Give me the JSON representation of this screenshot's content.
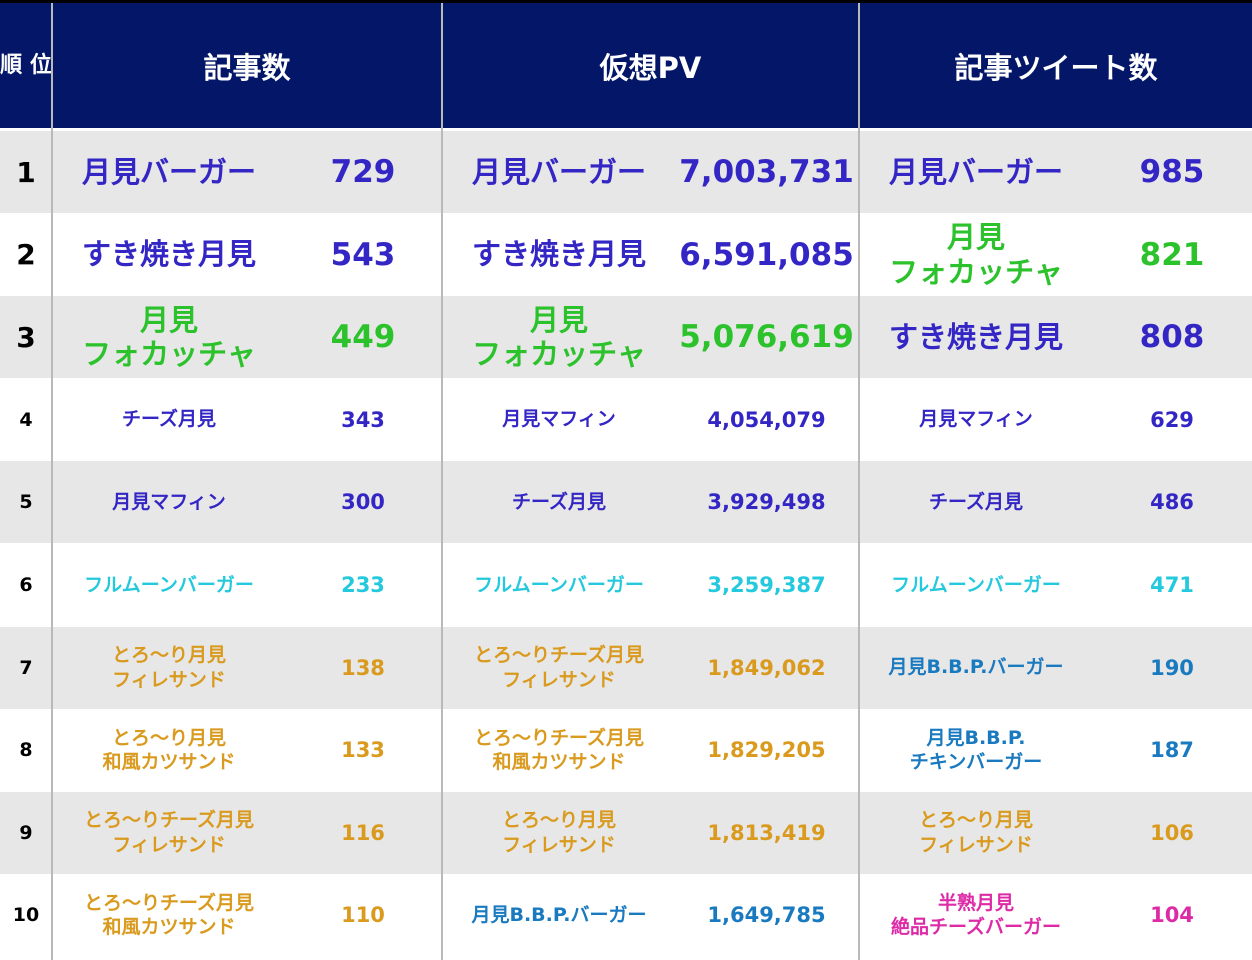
{
  "headers": {
    "rank": "順\n位",
    "col1": "記事数",
    "col2": "仮想PV",
    "col3": "記事ツイート数"
  },
  "colors": {
    "header_bg": "#031668",
    "purple_blue": "#3326c4",
    "green": "#2cc22c",
    "cyan": "#25c9dd",
    "gold": "#d99a1e",
    "blue": "#1a7ac0",
    "magenta": "#dd2aa6",
    "row_grey": "#e7e7e7"
  },
  "rows": [
    {
      "rank": "1",
      "c1_name": "月見バーガー",
      "c1_val": "729",
      "c1_color": "#3326c4",
      "c2_name": "月見バーガー",
      "c2_val": "7,003,731",
      "c2_color": "#3326c4",
      "c3_name": "月見バーガー",
      "c3_val": "985",
      "c3_color": "#3326c4"
    },
    {
      "rank": "2",
      "c1_name": "すき焼き月見",
      "c1_val": "543",
      "c1_color": "#3326c4",
      "c2_name": "すき焼き月見",
      "c2_val": "6,591,085",
      "c2_color": "#3326c4",
      "c3_name": "月見\nフォカッチャ",
      "c3_val": "821",
      "c3_color": "#2cc22c"
    },
    {
      "rank": "3",
      "c1_name": "月見\nフォカッチャ",
      "c1_val": "449",
      "c1_color": "#2cc22c",
      "c2_name": "月見\nフォカッチャ",
      "c2_val": "5,076,619",
      "c2_color": "#2cc22c",
      "c3_name": "すき焼き月見",
      "c3_val": "808",
      "c3_color": "#3326c4"
    },
    {
      "rank": "4",
      "c1_name": "チーズ月見",
      "c1_val": "343",
      "c1_color": "#3326c4",
      "c2_name": "月見マフィン",
      "c2_val": "4,054,079",
      "c2_color": "#3326c4",
      "c3_name": "月見マフィン",
      "c3_val": "629",
      "c3_color": "#3326c4"
    },
    {
      "rank": "5",
      "c1_name": "月見マフィン",
      "c1_val": "300",
      "c1_color": "#3326c4",
      "c2_name": "チーズ月見",
      "c2_val": "3,929,498",
      "c2_color": "#3326c4",
      "c3_name": "チーズ月見",
      "c3_val": "486",
      "c3_color": "#3326c4"
    },
    {
      "rank": "6",
      "c1_name": "フルムーンバーガー",
      "c1_val": "233",
      "c1_color": "#25c9dd",
      "c2_name": "フルムーンバーガー",
      "c2_val": "3,259,387",
      "c2_color": "#25c9dd",
      "c3_name": "フルムーンバーガー",
      "c3_val": "471",
      "c3_color": "#25c9dd"
    },
    {
      "rank": "7",
      "c1_name": "とろ～り月見\nフィレサンド",
      "c1_val": "138",
      "c1_color": "#d99a1e",
      "c2_name": "とろ～りチーズ月見\nフィレサンド",
      "c2_val": "1,849,062",
      "c2_color": "#d99a1e",
      "c3_name": "月見B.B.P.バーガー",
      "c3_val": "190",
      "c3_color": "#1a7ac0"
    },
    {
      "rank": "8",
      "c1_name": "とろ～り月見\n和風カツサンド",
      "c1_val": "133",
      "c1_color": "#d99a1e",
      "c2_name": "とろ～りチーズ月見\n和風カツサンド",
      "c2_val": "1,829,205",
      "c2_color": "#d99a1e",
      "c3_name": "月見B.B.P.\nチキンバーガー",
      "c3_val": "187",
      "c3_color": "#1a7ac0"
    },
    {
      "rank": "9",
      "c1_name": "とろ～りチーズ月見\nフィレサンド",
      "c1_val": "116",
      "c1_color": "#d99a1e",
      "c2_name": "とろ～り月見\nフィレサンド",
      "c2_val": "1,813,419",
      "c2_color": "#d99a1e",
      "c3_name": "とろ～り月見\nフィレサンド",
      "c3_val": "106",
      "c3_color": "#d99a1e"
    },
    {
      "rank": "10",
      "c1_name": "とろ～りチーズ月見\n和風カツサンド",
      "c1_val": "110",
      "c1_color": "#d99a1e",
      "c2_name": "月見B.B.P.バーガー",
      "c2_val": "1,649,785",
      "c2_color": "#1a7ac0",
      "c3_name": "半熟月見\n絶品チーズバーガー",
      "c3_val": "104",
      "c3_color": "#dd2aa6"
    }
  ]
}
